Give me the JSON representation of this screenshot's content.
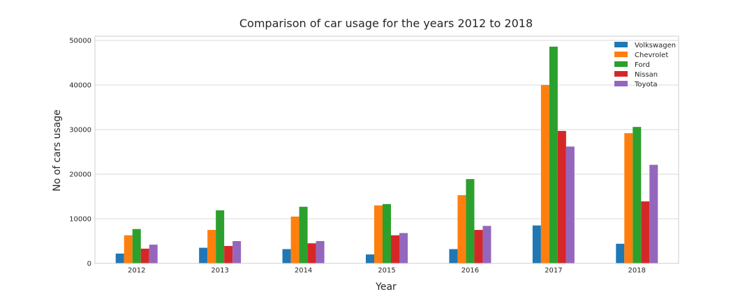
{
  "chart_data": {
    "type": "bar",
    "title": "Comparison of car usage for the years 2012 to 2018",
    "xlabel": "Year",
    "ylabel": "No of cars usage",
    "categories": [
      "2012",
      "2013",
      "2014",
      "2015",
      "2016",
      "2017",
      "2018"
    ],
    "ylim": [
      0,
      50000
    ],
    "yticks": [
      "0",
      "10000",
      "20000",
      "30000",
      "40000",
      "50000"
    ],
    "grid": true,
    "legend_position": "top-right",
    "series": [
      {
        "name": "Volkswagen",
        "color": "#1f77b4",
        "values": [
          2200,
          3500,
          3200,
          2000,
          3200,
          8500,
          4400
        ]
      },
      {
        "name": "Chevrolet",
        "color": "#ff7f0e",
        "values": [
          6300,
          7500,
          10500,
          13000,
          15300,
          40000,
          29200
        ]
      },
      {
        "name": "Ford",
        "color": "#2ca02c",
        "values": [
          7700,
          11900,
          12700,
          13300,
          18900,
          48600,
          30600
        ]
      },
      {
        "name": "Nissan",
        "color": "#d62728",
        "values": [
          3300,
          3900,
          4500,
          6300,
          7500,
          29700,
          13900
        ]
      },
      {
        "name": "Toyota",
        "color": "#9467bd",
        "values": [
          4200,
          5000,
          5000,
          6800,
          8400,
          26200,
          22100
        ]
      }
    ]
  }
}
